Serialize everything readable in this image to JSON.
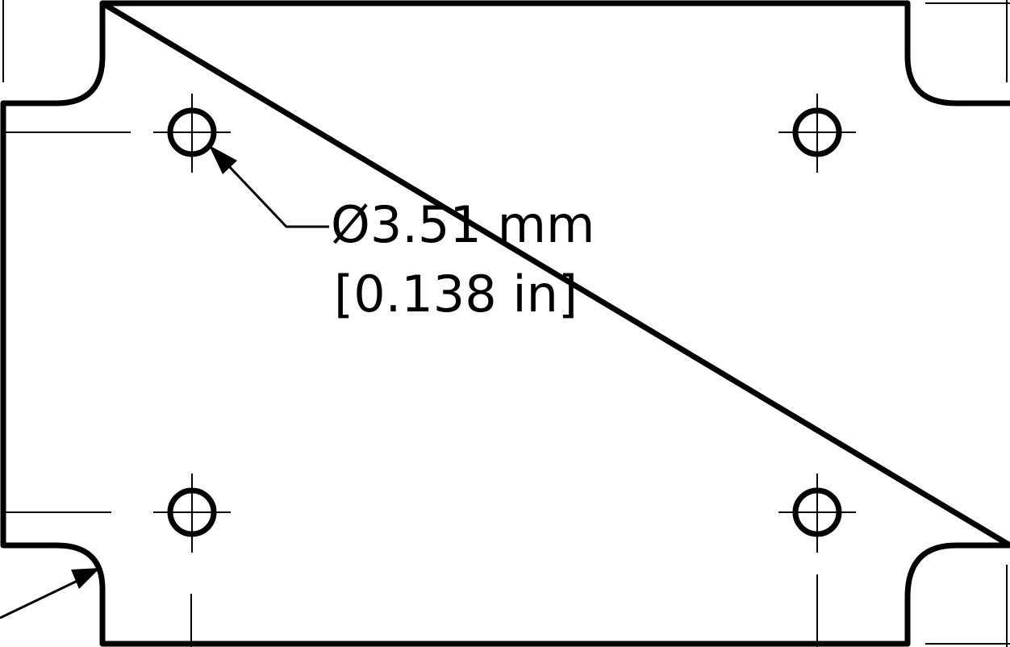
{
  "dimension": {
    "diameter_symbol": "Ø",
    "metric_value": "3.51 mm",
    "imperial_value": "[0.138 in]"
  },
  "drawing": {
    "line_color": "#000000",
    "background_color": "#ffffff",
    "mounting_hole_count": 4
  }
}
